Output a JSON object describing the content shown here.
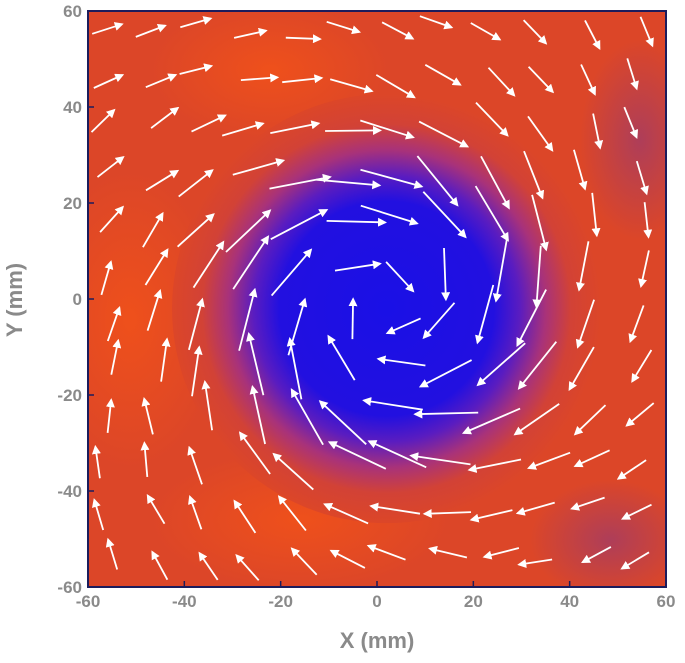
{
  "chart_data": {
    "type": "vector-field",
    "background": "contour",
    "xlabel": "X  (mm)",
    "ylabel": "Y  (mm)",
    "xlim": [
      -60,
      60
    ],
    "ylim": [
      -60,
      60
    ],
    "xticks": [
      "-60",
      "-40",
      "-20",
      "0",
      "20",
      "40",
      "60"
    ],
    "yticks": [
      "-60",
      "-40",
      "-20",
      "0",
      "20",
      "40",
      "60"
    ],
    "grid": false,
    "vortex_center": [
      2,
      -2
    ],
    "core_radius": 33,
    "colors": {
      "core": "#1a10e6",
      "outer": "#dc4628",
      "hot": "#f0501e",
      "arrow": "#ffffff",
      "frame": "#1c1c5c",
      "ticks": "#8a8a8a"
    }
  }
}
